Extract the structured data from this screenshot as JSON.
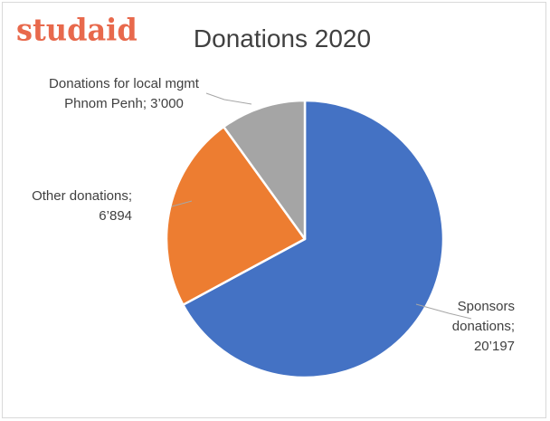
{
  "logo": {
    "text": "studaid"
  },
  "chart_data": {
    "type": "pie",
    "title": "Donations 2020",
    "legend": "none",
    "slices": [
      {
        "category": "Sponsors donations",
        "value": 20197,
        "value_label": "20’197",
        "color": "#4472c4",
        "label_lines": [
          "Sponsors",
          "donations;",
          "20’197"
        ]
      },
      {
        "category": "Other donations",
        "value": 6894,
        "value_label": "6’894",
        "color": "#ed7d31",
        "label_lines": [
          "Other donations;",
          "6’894"
        ]
      },
      {
        "category": "Donations for local mgmt Phnom Penh",
        "value": 3000,
        "value_label": "3’000",
        "color": "#a5a5a5",
        "label_lines": [
          "Donations for local mgmt",
          "Phnom Penh; 3’000"
        ]
      }
    ]
  }
}
